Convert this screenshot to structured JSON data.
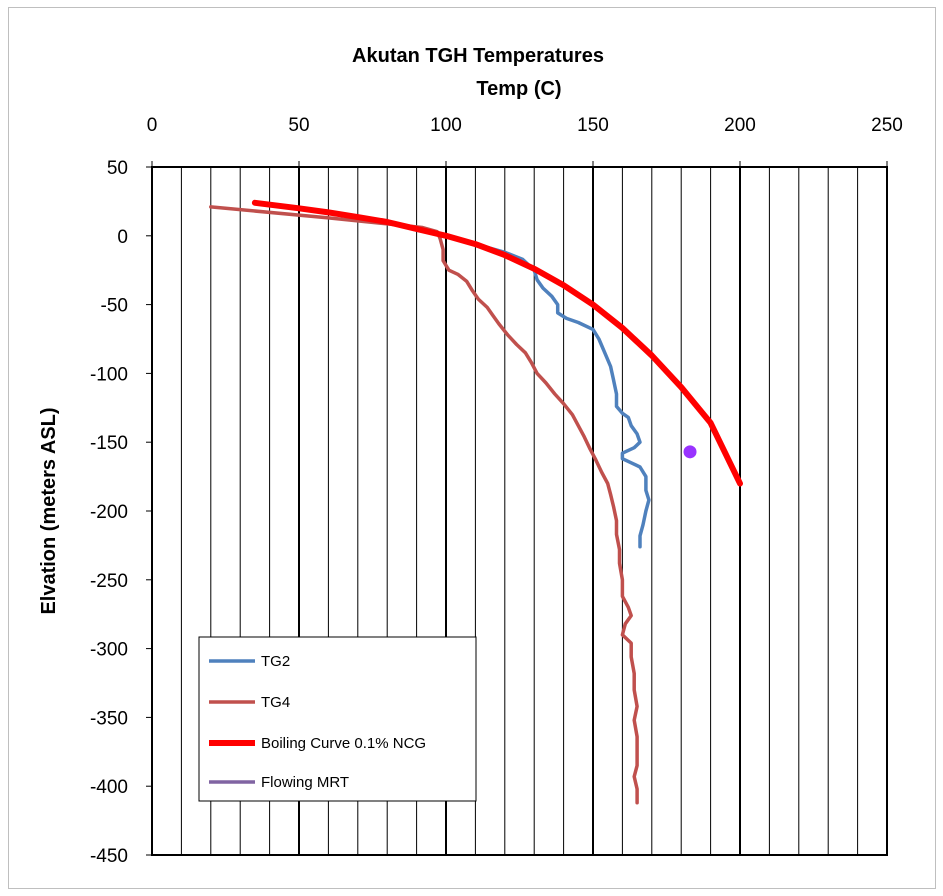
{
  "chart_data": {
    "type": "line",
    "title": "Akutan TGH Temperatures",
    "xlabel": "Temp (C)",
    "ylabel": "Elvation (meters ASL)",
    "xlim": [
      0,
      250
    ],
    "ylim": [
      -450,
      50
    ],
    "x_axis_position": "top",
    "x_ticks": [
      0,
      50,
      100,
      150,
      200,
      250
    ],
    "x_tick_labels": [
      "0",
      "50",
      "100",
      "150",
      "200",
      "250"
    ],
    "y_ticks": [
      50,
      0,
      -50,
      -100,
      -150,
      -200,
      -250,
      -300,
      -350,
      -400,
      -450
    ],
    "y_tick_labels": [
      "50",
      "0",
      "-50",
      "-100",
      "-150",
      "-200",
      "-250",
      "-300",
      "-350",
      "-400",
      "-450"
    ],
    "x_gridline_step": 10,
    "y_gridlines": false,
    "legend_position": "bottom-left",
    "series": [
      {
        "name": "TG2",
        "color": "#4f81bd",
        "line_width": "medium",
        "points": [
          [
            100,
            0
          ],
          [
            110,
            -6
          ],
          [
            120,
            -12
          ],
          [
            126,
            -17
          ],
          [
            130,
            -25
          ],
          [
            131,
            -32
          ],
          [
            133,
            -38
          ],
          [
            136,
            -44
          ],
          [
            138,
            -50
          ],
          [
            138,
            -56
          ],
          [
            141,
            -60
          ],
          [
            145,
            -63
          ],
          [
            150,
            -68
          ],
          [
            152,
            -75
          ],
          [
            154,
            -85
          ],
          [
            156,
            -95
          ],
          [
            157,
            -105
          ],
          [
            158,
            -115
          ],
          [
            158,
            -124
          ],
          [
            160,
            -129
          ],
          [
            162,
            -132
          ],
          [
            163,
            -138
          ],
          [
            165,
            -144
          ],
          [
            166,
            -150
          ],
          [
            164,
            -154
          ],
          [
            160,
            -158
          ],
          [
            160,
            -162
          ],
          [
            163,
            -165
          ],
          [
            166,
            -168
          ],
          [
            168,
            -175
          ],
          [
            168,
            -185
          ],
          [
            169,
            -192
          ],
          [
            168,
            -200
          ],
          [
            167,
            -210
          ],
          [
            166,
            -218
          ],
          [
            166,
            -226
          ]
        ]
      },
      {
        "name": "TG4",
        "color": "#c0504d",
        "line_width": "medium",
        "points": [
          [
            20,
            21
          ],
          [
            60,
            13
          ],
          [
            92,
            6
          ],
          [
            97,
            3
          ],
          [
            98,
            -2
          ],
          [
            99,
            -10
          ],
          [
            99,
            -18
          ],
          [
            101,
            -25
          ],
          [
            104,
            -28
          ],
          [
            107,
            -33
          ],
          [
            109,
            -40
          ],
          [
            111,
            -46
          ],
          [
            114,
            -52
          ],
          [
            116,
            -58
          ],
          [
            118,
            -64
          ],
          [
            121,
            -72
          ],
          [
            124,
            -79
          ],
          [
            127,
            -85
          ],
          [
            129,
            -92
          ],
          [
            131,
            -100
          ],
          [
            134,
            -107
          ],
          [
            137,
            -115
          ],
          [
            140,
            -122
          ],
          [
            143,
            -130
          ],
          [
            145,
            -138
          ],
          [
            147,
            -146
          ],
          [
            149,
            -155
          ],
          [
            151,
            -163
          ],
          [
            153,
            -172
          ],
          [
            155,
            -180
          ],
          [
            156,
            -188
          ],
          [
            157,
            -197
          ],
          [
            158,
            -207
          ],
          [
            158,
            -217
          ],
          [
            159,
            -228
          ],
          [
            159,
            -238
          ],
          [
            160,
            -250
          ],
          [
            160,
            -262
          ],
          [
            162,
            -270
          ],
          [
            163,
            -276
          ],
          [
            161,
            -282
          ],
          [
            160,
            -290
          ],
          [
            163,
            -296
          ],
          [
            163,
            -306
          ],
          [
            164,
            -318
          ],
          [
            164,
            -330
          ],
          [
            165,
            -342
          ],
          [
            164,
            -352
          ],
          [
            165,
            -364
          ],
          [
            165,
            -375
          ],
          [
            165,
            -385
          ],
          [
            164,
            -393
          ],
          [
            165,
            -402
          ],
          [
            165,
            -412
          ]
        ]
      },
      {
        "name": "Boiling Curve 0.1% NCG",
        "color": "#ff0000",
        "line_width": "thick",
        "points": [
          [
            35,
            24
          ],
          [
            50,
            20
          ],
          [
            60,
            17
          ],
          [
            70,
            13.6
          ],
          [
            80,
            10
          ],
          [
            90,
            5
          ],
          [
            100,
            0
          ],
          [
            110,
            -6
          ],
          [
            120,
            -14
          ],
          [
            130,
            -24
          ],
          [
            140,
            -36
          ],
          [
            150,
            -50
          ],
          [
            160,
            -67
          ],
          [
            170,
            -87
          ],
          [
            180,
            -110
          ],
          [
            190,
            -136
          ],
          [
            200,
            -180
          ]
        ]
      },
      {
        "name": "Flowing MRT",
        "color": "#8064a2",
        "line_width": "medium",
        "points": [
          [
            183,
            -157
          ]
        ]
      }
    ]
  }
}
